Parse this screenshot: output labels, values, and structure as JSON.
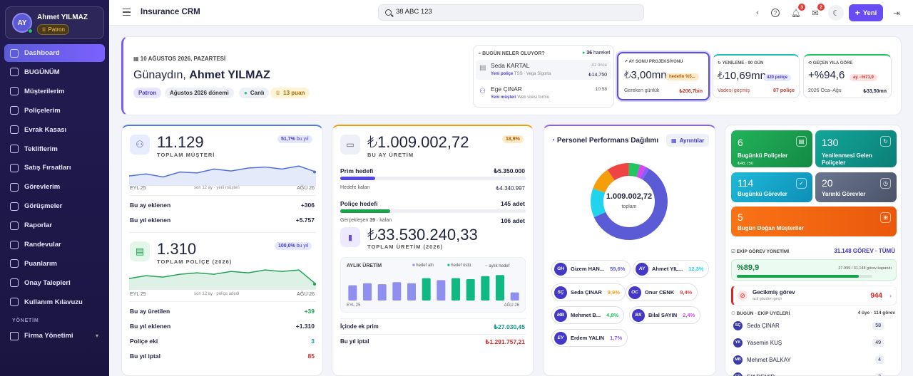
{
  "user": {
    "initials": "AY",
    "name": "Ahmet YILMAZ",
    "role": "Patron"
  },
  "nav": [
    {
      "label": "Dashboard",
      "icon": "dashboard-icon",
      "active": true
    },
    {
      "label": "BUGÜNÜM",
      "icon": "calendar-icon"
    },
    {
      "label": "Müşterilerim",
      "icon": "users-icon"
    },
    {
      "label": "Poliçelerim",
      "icon": "document-icon"
    },
    {
      "label": "Evrak Kasası",
      "icon": "folder-icon"
    },
    {
      "label": "Tekliflerim",
      "icon": "clipboard-icon"
    },
    {
      "label": "Satış Fırsatları",
      "icon": "trend-icon"
    },
    {
      "label": "Görevlerim",
      "icon": "check-icon"
    },
    {
      "label": "Görüşmeler",
      "icon": "chat-icon"
    },
    {
      "label": "Raporlar",
      "icon": "chart-icon"
    },
    {
      "label": "Randevular",
      "icon": "calendar-icon"
    },
    {
      "label": "Puanlarım",
      "icon": "trophy-icon"
    },
    {
      "label": "Onay Talepleri",
      "icon": "shield-icon"
    },
    {
      "label": "Kullanım Kılavuzu",
      "icon": "book-icon"
    }
  ],
  "nav_section": "YÖNETİM",
  "nav_admin": "Firma Yönetimi",
  "topbar": {
    "title": "Insurance CRM",
    "search_value": "38 ABC 123",
    "bell_badge": "3",
    "mail_badge": "2",
    "new_label": "Yeni"
  },
  "hero": {
    "date": "10 AĞUSTOS 2026, PAZARTESİ",
    "greeting": "Günaydın,",
    "name": "Ahmet YILMAZ",
    "chips": [
      "Patron",
      "Ağustos 2026 dönemi",
      "Canlı",
      "13 puan"
    ]
  },
  "today": {
    "title": "BUGÜN NELER OLUYOR?",
    "count": "36",
    "count_label": "hareket",
    "items": [
      {
        "name": "Seda KARTAL",
        "time": "Az önce",
        "tag": "Yeni poliçe",
        "detail": "TSS · Vega Sigorta",
        "amount": "₺14.750"
      },
      {
        "name": "Ege ÇINAR",
        "time": "10:58",
        "tag": "Yeni müşteri",
        "detail": "Web sitesi formu"
      }
    ]
  },
  "kpi_cards": [
    {
      "title": "AY SONU PROJEKSİYONU",
      "value": "₺3,00mn",
      "badge": "hedefin %5...",
      "sub_label": "Gereken günlük",
      "sub_value": "₺206,7bin"
    },
    {
      "title": "YENİLEME - 90 GÜN",
      "value": "₺10,69mn",
      "badge": "420 poliçe",
      "sub_label": "Vadesi geçmiş",
      "sub_value": "87 poliçe"
    },
    {
      "title": "GEÇEN YILA GÖRE",
      "value": "+%94,6",
      "badge": "ay −%71,9",
      "sub_label": "2026 Oca–Ağu",
      "sub_value": "₺33,50mn"
    }
  ],
  "customers": {
    "value": "11.129",
    "label": "TOPLAM MÜŞTERİ",
    "badge": "51,7%",
    "badge_suffix": "bu yıl",
    "axis_left": "EYL 25",
    "axis_mid": "son 12 ay · yeni müşteri",
    "axis_right": "AĞU 26",
    "series": [
      10,
      12,
      9,
      14,
      13,
      17,
      15,
      18,
      19,
      17,
      20,
      14
    ],
    "rows": [
      {
        "label": "Bu ay eklenen",
        "value": "+306"
      },
      {
        "label": "Bu yıl eklenen",
        "value": "+5.757"
      }
    ]
  },
  "policies": {
    "value": "1.310",
    "label": "TOPLAM POLİÇE (2026)",
    "badge": "100,0%",
    "badge_suffix": "bu yıl",
    "axis_left": "EYL 25",
    "axis_mid": "son 12 ay · poliçe adedi",
    "axis_right": "AĞU 26",
    "series": [
      8,
      10,
      9,
      11,
      12,
      11,
      13,
      12,
      14,
      13,
      14,
      4
    ],
    "rows": [
      {
        "label": "Bu ay üretilen",
        "value": "+39"
      },
      {
        "label": "Bu yıl eklenen",
        "value": "+1.310"
      },
      {
        "label": "Poliçe eki",
        "value": "3"
      },
      {
        "label": "Bu yıl iptal",
        "value": "85"
      }
    ]
  },
  "production": {
    "value": "₺1.009.002,72",
    "label": "BU AY ÜRETİM",
    "badge": "18,9%",
    "prim_label": "Prim hedefi",
    "prim_value": "₺5.350.000",
    "prim_progress": 0.19,
    "remain_label": "Hedefe kalan",
    "remain_value": "₺4.340.997",
    "pol_label": "Poliçe hedefi",
    "pol_value": "145 adet",
    "pol_progress": 0.27,
    "done_label": "Gerçekleşen",
    "done_count": "39",
    "done_suffix": "· kalan",
    "done_value": "106 adet",
    "total_value": "₺33.530.240,33",
    "total_label": "TOPLAM ÜRETİM (2026)",
    "monthly_title": "AYLIK ÜRETİM",
    "legend": [
      "hedef altı",
      "hedef üstü",
      "aylık hedef"
    ],
    "bars": [
      30,
      34,
      32,
      36,
      34,
      44,
      40,
      44,
      42,
      48,
      50,
      16
    ],
    "bar_above": [
      false,
      false,
      false,
      false,
      false,
      true,
      false,
      true,
      true,
      true,
      true,
      false
    ],
    "axis_left": "EYL 25",
    "axis_right": "AĞU 26",
    "ek_label": "İçinde ek prim",
    "ek_value": "₺27.030,45",
    "iptal_label": "Bu yıl iptal",
    "iptal_value": "₺1.291.757,21"
  },
  "performance": {
    "title": "Personel Performans Dağılımı",
    "details": "Ayrıntılar",
    "center_value": "1.009.002,72",
    "center_label": "toplam",
    "people": [
      {
        "initials": "GH",
        "name": "Gizem HAN...",
        "pct": "59,6%",
        "share": 59.6,
        "color": "#5b5bd6"
      },
      {
        "initials": "AY",
        "name": "Ahmet YIL...",
        "pct": "12,3%",
        "share": 12.3,
        "color": "#22d3ee"
      },
      {
        "initials": "SÇ",
        "name": "Seda ÇINAR",
        "pct": "9,9%",
        "share": 9.9,
        "color": "#f59e0b"
      },
      {
        "initials": "OC",
        "name": "Onur CENK",
        "pct": "9,4%",
        "share": 9.4,
        "color": "#ef4444"
      },
      {
        "initials": "MB",
        "name": "Mehmet B...",
        "pct": "4,8%",
        "share": 4.8,
        "color": "#22c55e"
      },
      {
        "initials": "BS",
        "name": "Bilal SAYIN",
        "pct": "2,4%",
        "share": 2.4,
        "color": "#d946ef"
      },
      {
        "initials": "EY",
        "name": "Erdem YALIN",
        "pct": "1,7%",
        "share": 1.7,
        "color": "#8b5cf6"
      }
    ]
  },
  "tiles": [
    {
      "value": "6",
      "label": "Bugünkü Poliçeler",
      "sub": "₺46.750"
    },
    {
      "value": "130",
      "label": "Yenilenmesi Gelen Poliçeler"
    },
    {
      "value": "114",
      "label": "Bugünkü Görevler"
    },
    {
      "value": "20",
      "label": "Yarınki Görevler"
    },
    {
      "value": "5",
      "label": "Bugün Doğan Müşteriler"
    }
  ],
  "tasks": {
    "title": "EKİP GÖREV YÖNETİMİ",
    "link": "31.148 GÖREV · TÜMÜ",
    "pct": "%89,9",
    "progress": 0.899,
    "detail": "27.999 / 31.148 görev kapandı",
    "overdue_label": "Gecikmiş görev",
    "overdue_sub": "acil gözden geçir",
    "overdue_value": "944"
  },
  "team": {
    "title": "BUGÜN · EKİP ÜYELERİ",
    "summary": "4 üye · 114 görev",
    "members": [
      {
        "initials": "SÇ",
        "name": "Seda ÇINAR",
        "count": "58"
      },
      {
        "initials": "YK",
        "name": "Yasemin KUŞ",
        "count": "49"
      },
      {
        "initials": "MB",
        "name": "Mehmet BALKAY",
        "count": "4"
      },
      {
        "initials": "ED",
        "name": "Elif DEMİR",
        "count": "3"
      }
    ]
  }
}
